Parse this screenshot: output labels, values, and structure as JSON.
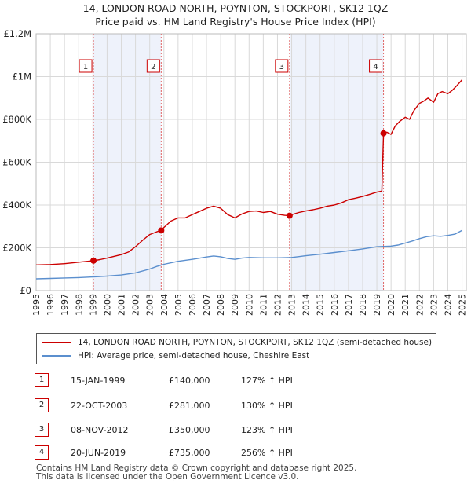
{
  "header": {
    "title": "14, LONDON ROAD NORTH, POYNTON, STOCKPORT, SK12 1QZ",
    "subtitle": "Price paid vs. HM Land Registry's House Price Index (HPI)"
  },
  "colors": {
    "property_line": "#cc0000",
    "hpi_line": "#5b8fce",
    "shade": "#eef2fb",
    "grid": "#d9d9d9",
    "marker_border": "#cc0000",
    "vline": "#e06666"
  },
  "chart_data": {
    "type": "line",
    "title": "14, LONDON ROAD NORTH, POYNTON, STOCKPORT, SK12 1QZ",
    "subtitle": "Price paid vs. HM Land Registry's House Price Index (HPI)",
    "xlim": [
      1995,
      2025.3
    ],
    "ylim": [
      0,
      1200000
    ],
    "x_ticks": [
      1995,
      1996,
      1997,
      1998,
      1999,
      2000,
      2001,
      2002,
      2003,
      2004,
      2005,
      2006,
      2007,
      2008,
      2009,
      2010,
      2011,
      2012,
      2013,
      2014,
      2015,
      2016,
      2017,
      2018,
      2019,
      2020,
      2021,
      2022,
      2023,
      2024,
      2025
    ],
    "y_ticks": [
      {
        "value": 0,
        "label": "£0"
      },
      {
        "value": 200000,
        "label": "£200K"
      },
      {
        "value": 400000,
        "label": "£400K"
      },
      {
        "value": 600000,
        "label": "£600K"
      },
      {
        "value": 800000,
        "label": "£800K"
      },
      {
        "value": 1000000,
        "label": "£1M"
      },
      {
        "value": 1200000,
        "label": "£1.2M"
      }
    ],
    "grid": true,
    "shaded_periods": [
      [
        1999.04,
        2003.81
      ],
      [
        2012.85,
        2019.47
      ]
    ],
    "series": [
      {
        "name": "14, LONDON ROAD NORTH, POYNTON, STOCKPORT, SK12 1QZ (semi-detached house)",
        "x": [
          1995,
          1996,
          1997,
          1998,
          1998.5,
          1999.04,
          1999.5,
          2000,
          2001,
          2001.5,
          2002,
          2002.5,
          2003,
          2003.5,
          2003.81,
          2004,
          2004.5,
          2005,
          2005.5,
          2006,
          2006.5,
          2007,
          2007.5,
          2008,
          2008.5,
          2009,
          2009.5,
          2010,
          2010.5,
          2011,
          2011.5,
          2012,
          2012.5,
          2012.85,
          2013,
          2013.5,
          2014,
          2014.5,
          2015,
          2015.5,
          2016,
          2016.5,
          2017,
          2017.5,
          2018,
          2018.5,
          2019,
          2019.35,
          2019.47,
          2019.7,
          2020,
          2020.3,
          2020.6,
          2021,
          2021.3,
          2021.6,
          2022,
          2022.3,
          2022.6,
          2023,
          2023.3,
          2023.6,
          2024,
          2024.3,
          2024.6,
          2025
        ],
        "y": [
          120000,
          122000,
          126000,
          133000,
          136000,
          140000,
          145000,
          152000,
          168000,
          180000,
          205000,
          235000,
          262000,
          275000,
          281000,
          295000,
          325000,
          340000,
          340000,
          355000,
          370000,
          385000,
          395000,
          385000,
          355000,
          340000,
          358000,
          370000,
          372000,
          365000,
          370000,
          357000,
          352000,
          350000,
          355000,
          365000,
          372000,
          378000,
          385000,
          395000,
          400000,
          410000,
          425000,
          432000,
          440000,
          450000,
          460000,
          465000,
          735000,
          740000,
          730000,
          770000,
          790000,
          810000,
          800000,
          840000,
          875000,
          885000,
          900000,
          880000,
          920000,
          930000,
          920000,
          935000,
          955000,
          985000
        ]
      },
      {
        "name": "HPI: Average price, semi-detached house, Cheshire East",
        "x": [
          1995,
          1996,
          1997,
          1998,
          1999,
          2000,
          2001,
          2002,
          2003,
          2003.5,
          2004,
          2005,
          2006,
          2007,
          2007.5,
          2008,
          2008.5,
          2009,
          2009.5,
          2010,
          2011,
          2012,
          2013,
          2014,
          2015,
          2016,
          2017,
          2018,
          2019,
          2020,
          2020.5,
          2021,
          2021.5,
          2022,
          2022.5,
          2023,
          2023.5,
          2024,
          2024.5,
          2025
        ],
        "y": [
          55000,
          57000,
          59000,
          61000,
          64000,
          68000,
          73000,
          83000,
          101000,
          113000,
          123000,
          137000,
          146000,
          157000,
          162000,
          158000,
          150000,
          146000,
          152000,
          155000,
          153000,
          153000,
          155000,
          163000,
          170000,
          178000,
          186000,
          195000,
          205000,
          208000,
          213000,
          222000,
          232000,
          243000,
          252000,
          256000,
          254000,
          258000,
          264000,
          282000
        ]
      }
    ],
    "annotations": [
      {
        "label": "1",
        "date": "15-JAN-1999",
        "x": 1999.04,
        "y": 140000
      },
      {
        "label": "2",
        "date": "22-OCT-2003",
        "x": 2003.81,
        "y": 281000
      },
      {
        "label": "3",
        "date": "08-NOV-2012",
        "x": 2012.85,
        "y": 350000
      },
      {
        "label": "4",
        "date": "20-JUN-2019",
        "x": 2019.47,
        "y": 735000
      }
    ]
  },
  "legend": {
    "property_label": "14, LONDON ROAD NORTH, POYNTON, STOCKPORT, SK12 1QZ (semi-detached house)",
    "hpi_label": "HPI: Average price, semi-detached house, Cheshire East"
  },
  "sales": [
    {
      "num": "1",
      "date": "15-JAN-1999",
      "price": "£140,000",
      "hpi": "127% ↑ HPI"
    },
    {
      "num": "2",
      "date": "22-OCT-2003",
      "price": "£281,000",
      "hpi": "130% ↑ HPI"
    },
    {
      "num": "3",
      "date": "08-NOV-2012",
      "price": "£350,000",
      "hpi": "123% ↑ HPI"
    },
    {
      "num": "4",
      "date": "20-JUN-2019",
      "price": "£735,000",
      "hpi": "256% ↑ HPI"
    }
  ],
  "footer": {
    "line1": "Contains HM Land Registry data © Crown copyright and database right 2025.",
    "line2": "This data is licensed under the Open Government Licence v3.0."
  }
}
